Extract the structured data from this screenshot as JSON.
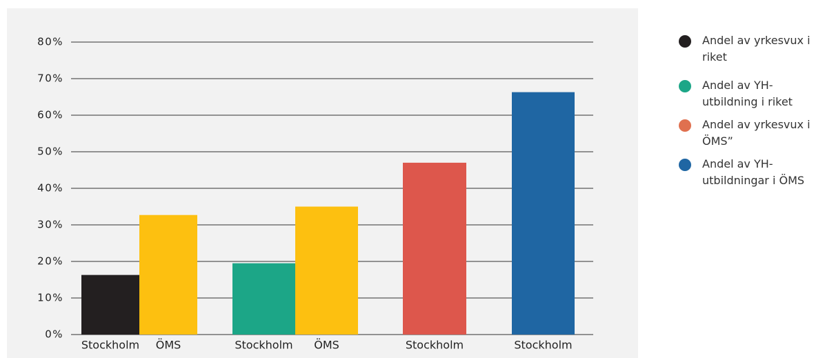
{
  "chart_data": {
    "type": "bar",
    "bars": [
      {
        "label": "Stockholm",
        "value": 16.3,
        "color": "#231f20"
      },
      {
        "label": "ÖMS",
        "value": 32.7,
        "color": "#fdc010"
      },
      {
        "label": "Stockholm",
        "value": 19.5,
        "color": "#1ca687"
      },
      {
        "label": "ÖMS",
        "value": 35,
        "color": "#fdc010"
      },
      {
        "label": "Stockholm",
        "value": 47,
        "color": "#dd574c"
      },
      {
        "label": "Stockholm",
        "value": 66.3,
        "color": "#1f66a3"
      }
    ],
    "ylim": [
      0,
      80
    ],
    "yticks": [
      {
        "value": 0,
        "label": "0%"
      },
      {
        "value": 10,
        "label": "10%"
      },
      {
        "value": 20,
        "label": "20%"
      },
      {
        "value": 30,
        "label": "30%"
      },
      {
        "value": 40,
        "label": "40%"
      },
      {
        "value": 50,
        "label": "50%"
      },
      {
        "value": 60,
        "label": "60%"
      },
      {
        "value": 70,
        "label": "70%"
      },
      {
        "value": 80,
        "label": "80%"
      }
    ],
    "grid": true,
    "legend": [
      {
        "name": "Andel av yrkesvux i riket",
        "color": "#231f20"
      },
      {
        "name": "Andel av YH-utbildning i riket",
        "color": "#1ca687"
      },
      {
        "name": "Andel av yrkesvux i ÖMS”",
        "color": "#e0704f"
      },
      {
        "name": "Andel av YH-utbildningar i ÖMS",
        "color": "#1f66a3"
      }
    ]
  }
}
